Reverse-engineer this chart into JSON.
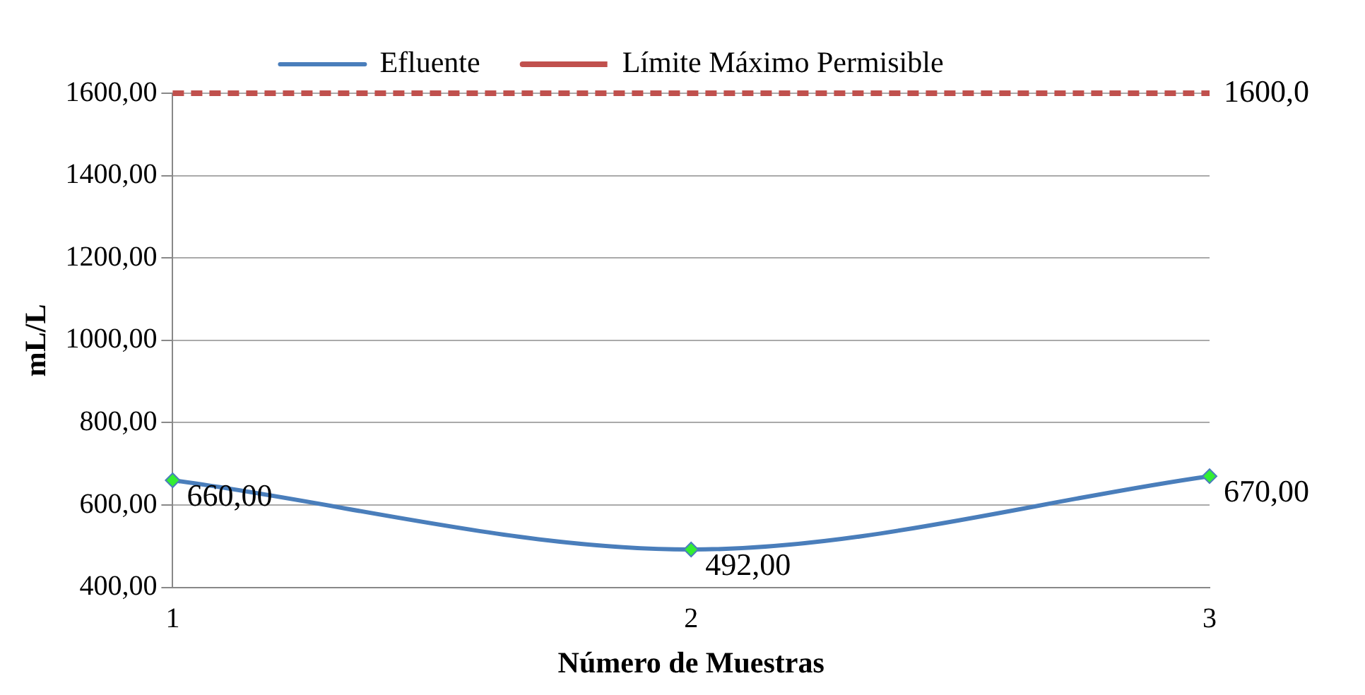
{
  "chart_data": {
    "type": "line",
    "xlabel": "Número de Muestras",
    "ylabel": "mL/L",
    "categories": [
      "1",
      "2",
      "3"
    ],
    "series": [
      {
        "name": "Efluente",
        "color": "#4a7ebb",
        "marker": "diamond",
        "line_style": "solid",
        "values": [
          660,
          492,
          670
        ],
        "value_labels": [
          "660,00",
          "492,00",
          "670,00"
        ]
      },
      {
        "name": "Límite Máximo Permisible",
        "color": "#c0504d",
        "marker": "none",
        "line_style": "dashed",
        "values": [
          1600,
          1600,
          1600
        ],
        "value_labels": [
          null,
          null,
          "1600,0"
        ]
      }
    ],
    "ylim": [
      400,
      1600
    ],
    "yticks": [
      {
        "value": 400,
        "label": "400,00"
      },
      {
        "value": 600,
        "label": "600,00"
      },
      {
        "value": 800,
        "label": "800,00"
      },
      {
        "value": 1000,
        "label": "1000,00"
      },
      {
        "value": 1200,
        "label": "1200,00"
      },
      {
        "value": 1400,
        "label": "1400,00"
      },
      {
        "value": 1600,
        "label": "1600,00"
      }
    ],
    "grid": "y",
    "legend": "top"
  }
}
